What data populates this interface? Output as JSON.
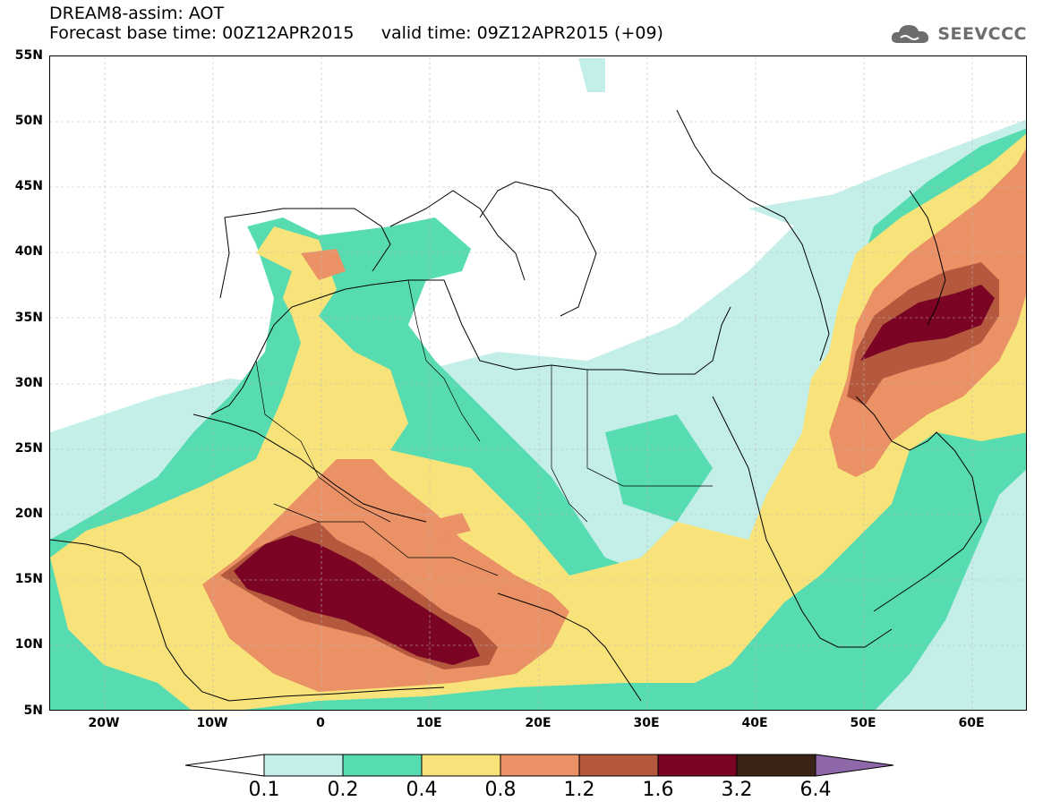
{
  "header": {
    "title_line1": "DREAM8-assim: AOT",
    "title_line2": "Forecast base time: 00Z12APR2015     valid time: 09Z12APR2015 (+09)",
    "brand": "SEEVCCC"
  },
  "map": {
    "region": "North Africa, Mediterranean and Middle East",
    "lat_labels": [
      "55N",
      "50N",
      "45N",
      "40N",
      "35N",
      "30N",
      "25N",
      "20N",
      "15N",
      "10N",
      "5N"
    ],
    "lon_labels": [
      "20W",
      "10W",
      "0",
      "10E",
      "20E",
      "30E",
      "40E",
      "50E",
      "60E"
    ],
    "lat_range": [
      5,
      55
    ],
    "lon_range": [
      -25,
      65
    ],
    "grid": true
  },
  "legend": {
    "labels": [
      "0.1",
      "0.2",
      "0.4",
      "0.8",
      "1.2",
      "1.6",
      "3.2",
      "6.4"
    ],
    "colors": [
      "#ffffff",
      "#c4efe9",
      "#56dcb0",
      "#f8e37a",
      "#ea9165",
      "#b4593e",
      "#7b0324",
      "#3b2316",
      "#8f68aa"
    ]
  }
}
